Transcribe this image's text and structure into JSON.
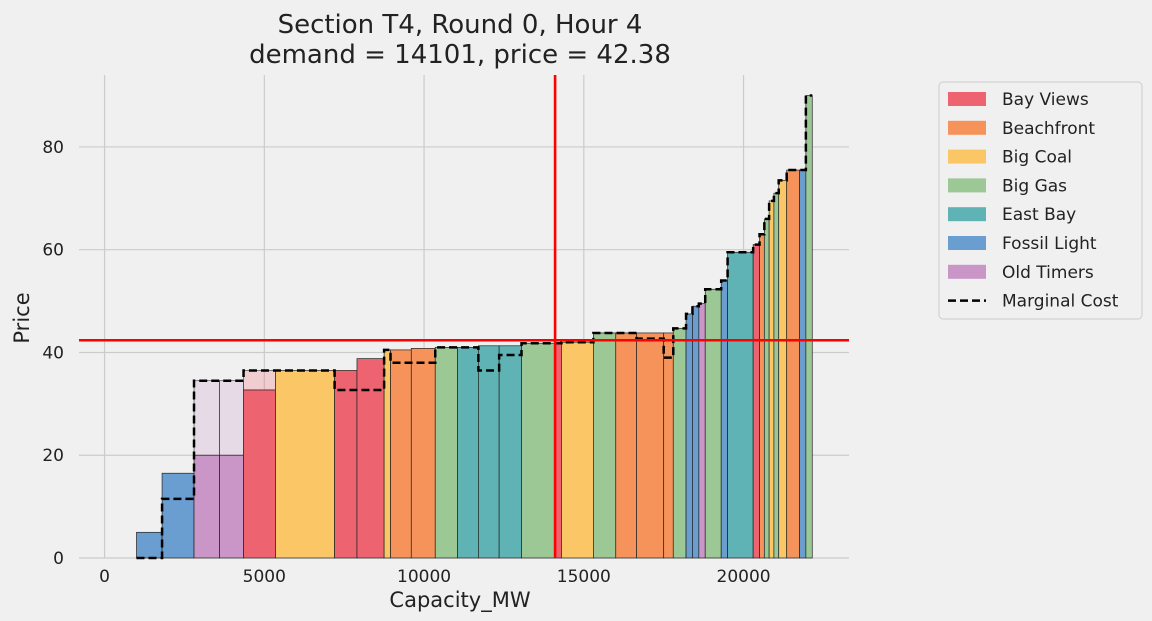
{
  "chart_data": {
    "type": "bar",
    "title_line1": "Section T4, Round 0, Hour 4",
    "title_line2": "demand = 14101, price = 42.38",
    "xlabel": "Capacity_MW",
    "ylabel": "Price",
    "xlim": [
      -800,
      23300
    ],
    "ylim": [
      0,
      94
    ],
    "xticks": [
      0,
      5000,
      10000,
      15000,
      20000
    ],
    "yticks": [
      0,
      20,
      40,
      60,
      80
    ],
    "grid": true,
    "legend_position": "outside-right",
    "demand": 14101,
    "price": 42.38,
    "colors": {
      "Bay Views": "#ee6370",
      "Beachfront": "#f5935a",
      "Big Coal": "#fbc766",
      "Big Gas": "#9bc894",
      "East Bay": "#60b3b4",
      "Fossil Light": "#6a9dd0",
      "Old Timers": "#c996c7",
      "market_line": "#ff0000",
      "marginal_cost": "#000000"
    },
    "legend": [
      "Bay Views",
      "Beachfront",
      "Big Coal",
      "Big Gas",
      "East Bay",
      "Fossil Light",
      "Old Timers",
      "Marginal Cost"
    ],
    "bars": [
      {
        "x0": 1000,
        "x1": 1800,
        "price": 5,
        "owner": "Fossil Light",
        "mc": 0
      },
      {
        "x0": 1800,
        "x1": 2800,
        "price": 16.5,
        "owner": "Fossil Light",
        "mc": 11.5
      },
      {
        "x0": 2800,
        "x1": 3600,
        "price": 20,
        "owner": "Old Timers",
        "mc": 34.5,
        "overlay": 34.5
      },
      {
        "x0": 3600,
        "x1": 4350,
        "price": 20,
        "owner": "Old Timers",
        "mc": 34.5,
        "overlay": 34.5
      },
      {
        "x0": 4350,
        "x1": 5350,
        "price": 32.7,
        "owner": "Bay Views",
        "mc": 36.5,
        "overlay": 36.5
      },
      {
        "x0": 5350,
        "x1": 7200,
        "price": 36.5,
        "owner": "Big Coal",
        "mc": 36.5
      },
      {
        "x0": 7200,
        "x1": 7900,
        "price": 36.5,
        "owner": "Bay Views",
        "mc": 32.7
      },
      {
        "x0": 7900,
        "x1": 8750,
        "price": 38.8,
        "owner": "Bay Views",
        "mc": 32.7
      },
      {
        "x0": 8750,
        "x1": 8950,
        "price": 40.5,
        "owner": "Big Coal",
        "mc": 40.5
      },
      {
        "x0": 8950,
        "x1": 9600,
        "price": 40.5,
        "owner": "Beachfront",
        "mc": 38
      },
      {
        "x0": 9600,
        "x1": 10350,
        "price": 40.8,
        "owner": "Beachfront",
        "mc": 38
      },
      {
        "x0": 10350,
        "x1": 11050,
        "price": 41,
        "owner": "Big Gas",
        "mc": 41
      },
      {
        "x0": 11050,
        "x1": 11700,
        "price": 41,
        "owner": "East Bay",
        "mc": 41
      },
      {
        "x0": 11700,
        "x1": 12350,
        "price": 41.3,
        "owner": "East Bay",
        "mc": 36.5
      },
      {
        "x0": 12350,
        "x1": 13050,
        "price": 41.3,
        "owner": "East Bay",
        "mc": 39.5
      },
      {
        "x0": 13050,
        "x1": 14100,
        "price": 41.8,
        "owner": "Big Gas",
        "mc": 41.8
      },
      {
        "x0": 14100,
        "x1": 14300,
        "price": 41.8,
        "owner": "Bay Views",
        "mc": 41.8
      },
      {
        "x0": 14300,
        "x1": 15300,
        "price": 42,
        "owner": "Big Coal",
        "mc": 42
      },
      {
        "x0": 15300,
        "x1": 16000,
        "price": 43.8,
        "owner": "Big Gas",
        "mc": 43.8
      },
      {
        "x0": 16000,
        "x1": 16650,
        "price": 43.8,
        "owner": "Beachfront",
        "mc": 43.8
      },
      {
        "x0": 16650,
        "x1": 17500,
        "price": 43.8,
        "owner": "Beachfront",
        "mc": 42.7
      },
      {
        "x0": 17500,
        "x1": 17800,
        "price": 43.8,
        "owner": "Beachfront",
        "mc": 39
      },
      {
        "x0": 17800,
        "x1": 18200,
        "price": 44.7,
        "owner": "Big Gas",
        "mc": 44.7
      },
      {
        "x0": 18200,
        "x1": 18400,
        "price": 47.5,
        "owner": "Fossil Light",
        "mc": 47.5
      },
      {
        "x0": 18400,
        "x1": 18600,
        "price": 49,
        "owner": "Fossil Light",
        "mc": 49
      },
      {
        "x0": 18600,
        "x1": 18800,
        "price": 49.5,
        "owner": "Old Timers",
        "mc": 49.5
      },
      {
        "x0": 18800,
        "x1": 19300,
        "price": 52.3,
        "owner": "Big Gas",
        "mc": 52.3
      },
      {
        "x0": 19300,
        "x1": 19500,
        "price": 54,
        "owner": "Fossil Light",
        "mc": 54
      },
      {
        "x0": 19500,
        "x1": 20300,
        "price": 59.5,
        "owner": "East Bay",
        "mc": 59.5
      },
      {
        "x0": 20300,
        "x1": 20500,
        "price": 61,
        "owner": "Bay Views",
        "mc": 61
      },
      {
        "x0": 20500,
        "x1": 20650,
        "price": 63,
        "owner": "Beachfront",
        "mc": 63
      },
      {
        "x0": 20650,
        "x1": 20800,
        "price": 66,
        "owner": "Big Gas",
        "mc": 66
      },
      {
        "x0": 20800,
        "x1": 20950,
        "price": 69.5,
        "owner": "Big Coal",
        "mc": 69.5
      },
      {
        "x0": 20950,
        "x1": 21100,
        "price": 71,
        "owner": "Big Gas",
        "mc": 71
      },
      {
        "x0": 21100,
        "x1": 21350,
        "price": 73.5,
        "owner": "Big Coal",
        "mc": 73.5
      },
      {
        "x0": 21350,
        "x1": 21750,
        "price": 75.5,
        "owner": "Beachfront",
        "mc": 75.5
      },
      {
        "x0": 21750,
        "x1": 21950,
        "price": 75.5,
        "owner": "Fossil Light",
        "mc": 75.5
      },
      {
        "x0": 21950,
        "x1": 22150,
        "price": 90,
        "owner": "Big Gas",
        "mc": 90
      }
    ]
  }
}
